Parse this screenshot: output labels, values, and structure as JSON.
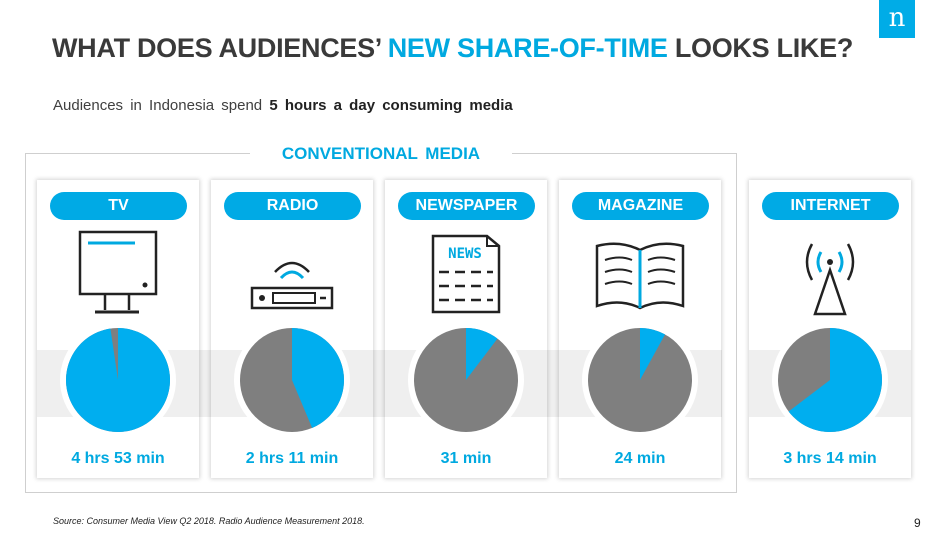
{
  "brand": {
    "logo_letter": "n",
    "accent": "#00a9e0",
    "pie_color": "#7f7f7f",
    "slice_color": "#00aeef"
  },
  "header": {
    "title_part1": "WHAT DOES AUDIENCES’ ",
    "title_highlight": "NEW SHARE-OF-TIME",
    "title_part2": " LOOKS LIKE?",
    "subtitle_prefix": "Audiences in Indonesia spend ",
    "subtitle_bold": "5 hours a day consuming media"
  },
  "group_label": "CONVENTIONAL MEDIA",
  "chart_data": {
    "type": "pie",
    "unit": "minutes per day",
    "day_total_minutes": 300,
    "series": [
      {
        "name": "TV",
        "icon": "tv-icon",
        "label": "4 hrs 53 min",
        "minutes": 293
      },
      {
        "name": "RADIO",
        "icon": "radio-icon",
        "label": "2 hrs 11 min",
        "minutes": 131
      },
      {
        "name": "NEWSPAPER",
        "icon": "newspaper-icon",
        "label": "31 min",
        "minutes": 31
      },
      {
        "name": "MAGAZINE",
        "icon": "magazine-icon",
        "label": "24 min",
        "minutes": 24
      },
      {
        "name": "INTERNET",
        "icon": "internet-icon",
        "label": "3 hrs 14 min",
        "minutes": 194
      }
    ]
  },
  "news_text": "NEWS",
  "footer": {
    "source": "Source: Consumer Media View Q2 2018. Radio Audience Measurement 2018.",
    "page_number": "9"
  }
}
